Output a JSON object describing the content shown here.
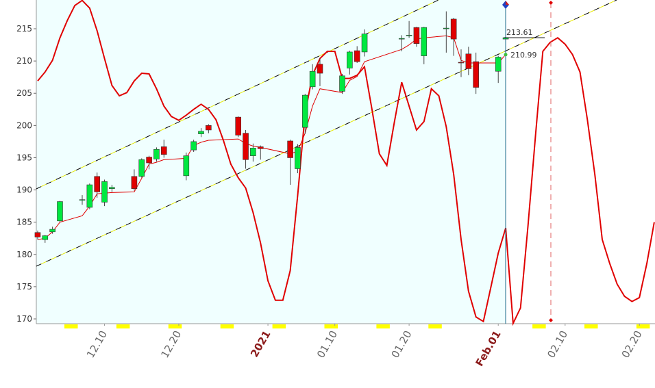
{
  "chart_data": {
    "type": "candlestick",
    "x": [
      1,
      2,
      3,
      4,
      7,
      8,
      9,
      10,
      11,
      14,
      15,
      16,
      17,
      18,
      21,
      22,
      23,
      24,
      28,
      29,
      30,
      31,
      35,
      36,
      37,
      38,
      39,
      42,
      43,
      44,
      45,
      50,
      51,
      52,
      53,
      56,
      57,
      58,
      59,
      60,
      63,
      64
    ],
    "open": [
      183.4,
      182.3,
      183.5,
      185.2,
      188.4,
      187.3,
      192.1,
      188.1,
      190.2,
      192.1,
      192.1,
      195.1,
      194.8,
      196.7,
      192.2,
      196.2,
      198.7,
      200.0,
      201.3,
      198.8,
      195.3,
      196.7,
      197.6,
      193.3,
      199.7,
      206.0,
      209.5,
      205.3,
      208.9,
      211.6,
      211.4,
      213.4,
      213.9,
      215.2,
      210.8,
      215.0,
      216.5,
      209.8,
      211.1,
      209.9,
      208.4,
      213.4
    ],
    "high": [
      183.7,
      183.0,
      184.3,
      188.3,
      189.2,
      191.0,
      192.7,
      191.6,
      190.8,
      193.2,
      194.9,
      195.3,
      196.6,
      197.8,
      195.8,
      197.8,
      199.6,
      200.2,
      201.4,
      199.3,
      197.2,
      196.9,
      197.8,
      197.1,
      204.9,
      209.5,
      210.4,
      208.0,
      211.6,
      212.3,
      214.9,
      214.0,
      216.2,
      215.3,
      215.3,
      217.7,
      216.7,
      211.8,
      212.2,
      211.3,
      210.8,
      213.8
    ],
    "low": [
      182.3,
      181.8,
      183.2,
      185.0,
      187.7,
      187.0,
      188.8,
      187.5,
      189.7,
      189.9,
      191.9,
      193.2,
      194.4,
      195.0,
      191.5,
      195.9,
      198.2,
      198.8,
      198.2,
      193.3,
      194.4,
      194.7,
      190.8,
      192.6,
      198.7,
      205.6,
      206.1,
      204.9,
      207.9,
      209.7,
      210.7,
      211.5,
      213.6,
      212.2,
      209.5,
      211.3,
      210.8,
      207.5,
      207.8,
      204.9,
      206.6,
      213.4
    ],
    "close": [
      182.7,
      182.9,
      183.9,
      188.2,
      188.5,
      190.8,
      189.7,
      191.3,
      190.4,
      190.2,
      194.7,
      194.2,
      196.3,
      195.5,
      195.3,
      197.5,
      199.1,
      199.3,
      198.5,
      194.7,
      196.5,
      196.4,
      195.0,
      196.6,
      204.7,
      208.4,
      208.1,
      207.7,
      211.4,
      209.9,
      214.2,
      213.5,
      214.0,
      212.7,
      215.2,
      215.1,
      213.4,
      209.7,
      208.8,
      205.9,
      210.6,
      213.61
    ],
    "up_color": "#00e840",
    "down_color": "#e00000",
    "overlays": [
      {
        "color": "#e00000",
        "width": 1,
        "values": [
          182.3,
          182.5,
          183.5,
          185.0,
          186.0,
          187.5,
          189.4,
          189.5,
          189.6,
          189.7,
          191.8,
          194.0,
          194.3,
          194.7,
          194.9,
          196.9,
          197.4,
          197.7,
          197.9,
          197.2,
          196.8,
          196.6,
          195.6,
          196.0,
          198.8,
          203.0,
          205.7,
          205.1,
          207.0,
          207.6,
          209.9,
          211.8,
          212.5,
          213.4,
          213.6,
          213.9,
          213.6,
          210.1,
          209.7,
          209.7,
          209.7,
          211.0
        ]
      },
      {
        "color": "#e00000",
        "width": 2,
        "x": [
          1,
          2,
          3,
          4,
          5,
          6,
          7,
          8,
          9,
          10,
          11,
          12,
          13,
          14,
          15,
          16,
          17,
          18,
          19,
          20,
          21,
          22,
          23,
          24,
          25,
          26,
          27,
          28,
          29,
          30,
          31,
          32,
          33,
          34,
          35,
          36,
          37,
          38,
          39,
          40,
          41,
          42,
          43,
          44,
          45,
          46,
          47,
          48,
          49,
          50,
          51,
          52,
          53,
          54,
          55,
          56,
          57,
          58,
          59,
          60,
          61,
          62,
          63,
          64,
          65,
          66,
          67,
          68,
          69,
          70,
          71,
          72,
          73,
          74,
          75,
          76,
          77,
          78,
          79,
          80,
          81,
          82,
          83,
          84
        ],
        "values": [
          206.9,
          208.3,
          210.1,
          213.6,
          216.3,
          218.6,
          219.4,
          218.2,
          214.7,
          210.4,
          206.2,
          204.6,
          205.1,
          206.9,
          208.1,
          208.0,
          205.7,
          203.0,
          201.4,
          200.8,
          201.6,
          202.5,
          203.3,
          202.5,
          200.9,
          197.7,
          194.0,
          191.9,
          190.3,
          186.5,
          181.8,
          175.9,
          172.9,
          172.9,
          177.5,
          189.2,
          201.9,
          207.8,
          210.4,
          211.5,
          211.5,
          207.3,
          207.3,
          207.8,
          209.1,
          202.5,
          195.6,
          193.8,
          200.4,
          206.7,
          203.0,
          199.3,
          200.6,
          205.7,
          204.6,
          199.8,
          192.4,
          182.3,
          174.3,
          170.3,
          169.6,
          174.9,
          180.2,
          184.1,
          169.3,
          171.7,
          184.4,
          198.2,
          211.5,
          212.9,
          213.6,
          212.6,
          211.0,
          208.3,
          200.9,
          192.4,
          182.3,
          178.6,
          175.4,
          173.5,
          172.7,
          173.3,
          178.6,
          185.0
        ]
      }
    ],
    "price_labels": [
      213.61,
      210.99
    ],
    "weekends": [
      5,
      12,
      19,
      26,
      33,
      40,
      47,
      54,
      68,
      75,
      82
    ],
    "weekend_color": "#ffff00",
    "xlim": [
      0.82,
      84.1
    ],
    "ylim": [
      169.26,
      219.46
    ],
    "yticks": [
      170,
      175,
      180,
      185,
      190,
      195,
      200,
      205,
      210,
      215
    ],
    "xticks": [
      {
        "value": 10,
        "label": "12.10"
      },
      {
        "value": 20,
        "label": "12.20"
      },
      {
        "value": 32,
        "label": "2021"
      },
      {
        "value": 41,
        "label": "01.10"
      },
      {
        "value": 51,
        "label": "01.20"
      },
      {
        "value": 63,
        "label": "Feb.01"
      },
      {
        "value": 72,
        "label": "02.10"
      },
      {
        "value": 82,
        "label": "02.20"
      }
    ],
    "highlight_xticks": [
      2,
      5
    ]
  }
}
